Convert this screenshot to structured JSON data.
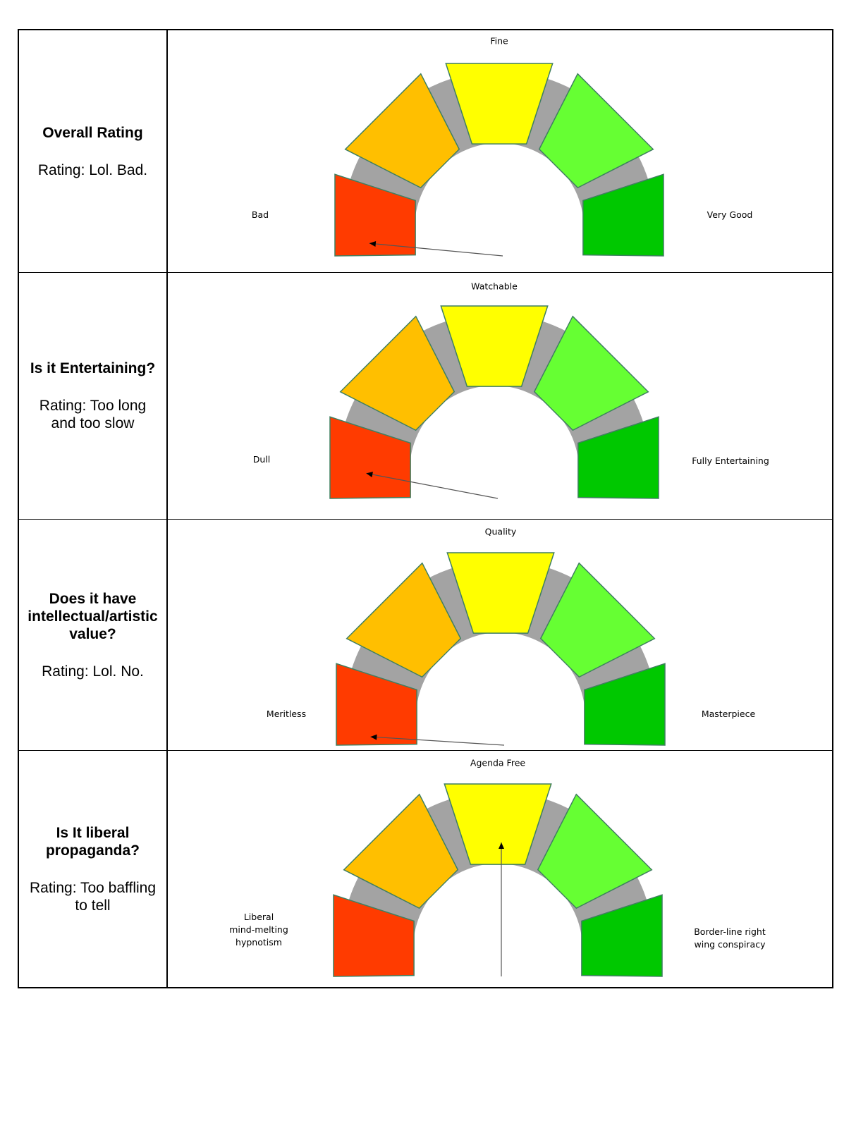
{
  "colors": {
    "track": "#a3a3a3",
    "segments": [
      "#ff3b00",
      "#ffbf00",
      "#ffff00",
      "#66ff33",
      "#00c800"
    ],
    "segment_stroke": "#3f7f60"
  },
  "rows": [
    {
      "question": "Overall Rating",
      "rating_lines": [
        "Rating: Lol. Bad."
      ],
      "gauge": {
        "top_label": "Fine",
        "left_label_lines": [
          "Bad"
        ],
        "right_label_lines": [
          "Very Good"
        ],
        "needle_level": 0.03
      }
    },
    {
      "question": "Is it Entertaining?",
      "rating_lines": [
        "Rating: Too long",
        "and too slow"
      ],
      "gauge": {
        "top_label": "Watchable",
        "left_label_lines": [
          "Dull"
        ],
        "right_label_lines": [
          "Fully Entertaining"
        ],
        "needle_level": 0.06
      }
    },
    {
      "question": "Does it have intellectual/artistic value?",
      "rating_lines": [
        "Rating: Lol. No."
      ],
      "gauge": {
        "top_label": "Quality",
        "left_label_lines": [
          "Meritless"
        ],
        "right_label_lines": [
          "Masterpiece"
        ],
        "needle_level": 0.02
      }
    },
    {
      "question": "Is It liberal propaganda?",
      "rating_lines": [
        "Rating: Too baffling",
        "to tell"
      ],
      "gauge": {
        "top_label": "Agenda Free",
        "left_label_lines": [
          "Liberal",
          "mind-melting",
          "hypnotism"
        ],
        "right_label_lines": [
          "Border-line right",
          "wing conspiracy"
        ],
        "needle_level": 0.5
      }
    }
  ]
}
